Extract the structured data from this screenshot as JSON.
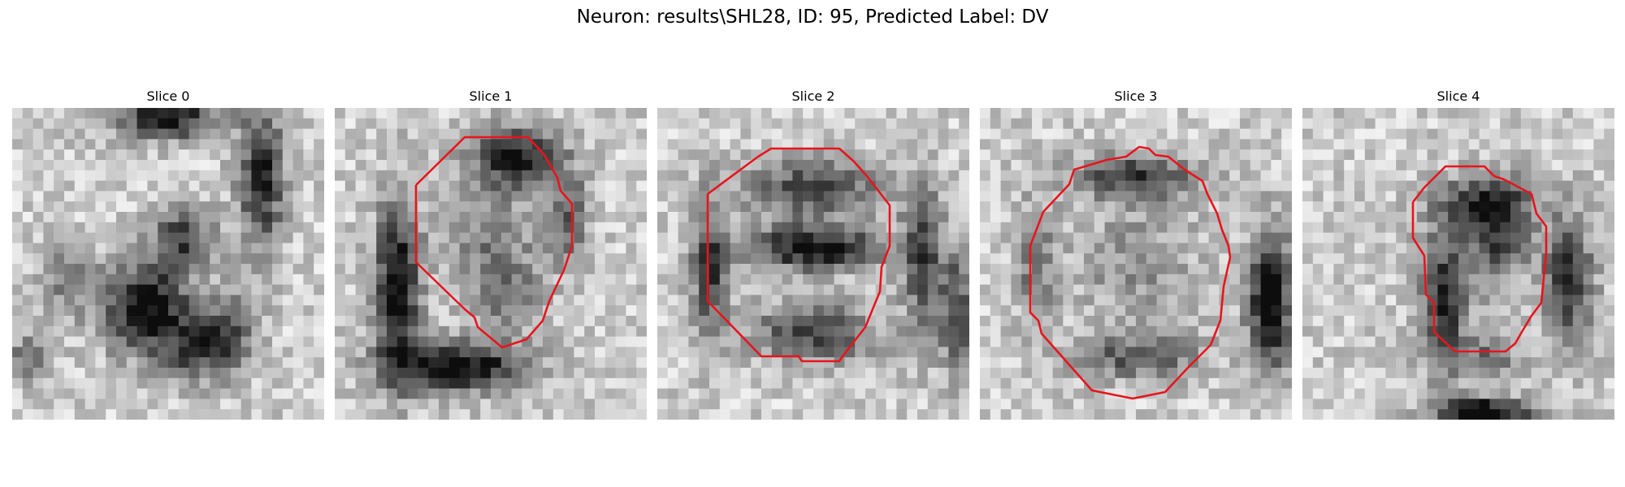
{
  "figure": {
    "title": "Neuron: results\\SHL28, ID: 95, Predicted Label: DV"
  },
  "slices": [
    {
      "title": "Slice 0",
      "has_contour": false
    },
    {
      "title": "Slice 1",
      "has_contour": true
    },
    {
      "title": "Slice 2",
      "has_contour": true
    },
    {
      "title": "Slice 3",
      "has_contour": true
    },
    {
      "title": "Slice 4",
      "has_contour": true
    }
  ],
  "colors": {
    "contour": "#e8141c",
    "background": "#ffffff"
  }
}
